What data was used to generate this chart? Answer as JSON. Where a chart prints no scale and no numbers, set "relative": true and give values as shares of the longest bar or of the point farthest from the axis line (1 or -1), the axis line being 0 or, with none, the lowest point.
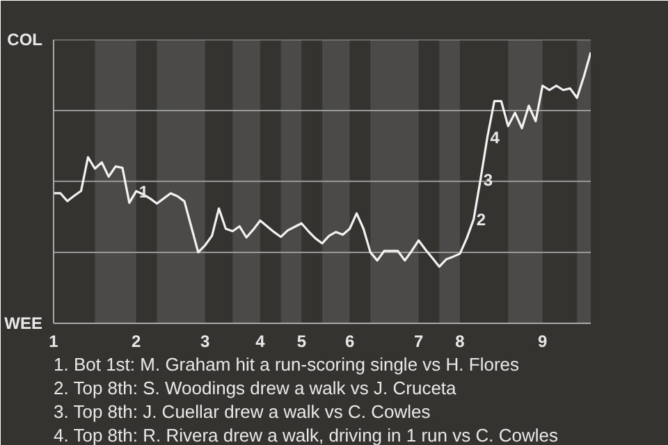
{
  "chart_data": {
    "type": "line",
    "relative": true,
    "categories": [
      "1",
      null,
      null,
      null,
      null,
      null,
      null,
      null,
      null,
      null,
      null,
      null,
      "2",
      null,
      null,
      null,
      null,
      null,
      null,
      null,
      null,
      null,
      "3",
      null,
      null,
      null,
      null,
      null,
      null,
      null,
      "4",
      null,
      null,
      null,
      null,
      null,
      "5",
      null,
      null,
      null,
      null,
      null,
      null,
      "6",
      null,
      null,
      null,
      null,
      null,
      null,
      null,
      null,
      null,
      "7",
      null,
      null,
      null,
      null,
      null,
      "8",
      null,
      null,
      null,
      null,
      null,
      null,
      null,
      null,
      null,
      null,
      null,
      "9",
      null,
      null,
      null,
      null,
      null,
      null,
      null
    ],
    "series": [
      {
        "color": "#f2f2f2",
        "values": [
          0.48,
          0.48,
          0.451,
          0.471,
          0.489,
          0.613,
          0.571,
          0.594,
          0.541,
          0.579,
          0.574,
          0.445,
          0.488,
          0.476,
          0.461,
          0.442,
          0.461,
          0.48,
          0.469,
          0.45,
          0.356,
          0.262,
          0.288,
          0.323,
          0.424,
          0.349,
          0.34,
          0.358,
          0.317,
          0.346,
          0.379,
          0.358,
          0.337,
          0.319,
          0.343,
          0.356,
          0.369,
          0.34,
          0.314,
          0.295,
          0.323,
          0.337,
          0.327,
          0.349,
          0.406,
          0.349,
          0.262,
          0.232,
          0.267,
          0.267,
          0.267,
          0.232,
          0.267,
          0.306,
          0.272,
          0.241,
          0.209,
          0.236,
          0.246,
          0.257,
          0.314,
          0.384,
          0.532,
          0.689,
          0.82,
          0.82,
          0.728,
          0.777,
          0.72,
          0.803,
          0.746,
          0.877,
          0.861,
          0.877,
          0.861,
          0.867,
          0.832,
          0.911,
          1
        ]
      }
    ],
    "ref_lines": [
      {
        "axis": "y",
        "value": 0.262,
        "color": "#999999"
      },
      {
        "axis": "y",
        "value": 0.524,
        "color": "#999999"
      },
      {
        "axis": "y",
        "value": 0.785,
        "color": "#999999"
      },
      {
        "axis": "y",
        "value": 1.047,
        "color": "#999999"
      }
    ],
    "annotations": [
      "COL",
      "WEE",
      {
        "text": "1",
        "y": 0.488
      },
      {
        "text": "2",
        "y": 0.384
      },
      {
        "text": "3",
        "y": 0.532
      },
      {
        "text": "4",
        "y": 0.689
      },
      "1. Bot 1st: M. Graham hit a run-scoring single vs H. Flores",
      "2. Top 8th: S. Woodings drew a walk vs J. Cruceta",
      "3. Top 8th: J. Cuellar drew a walk vs C. Cowles",
      "4. Top 8th: R. Rivera drew a walk, driving in 1 run vs C. Cowles"
    ]
  }
}
